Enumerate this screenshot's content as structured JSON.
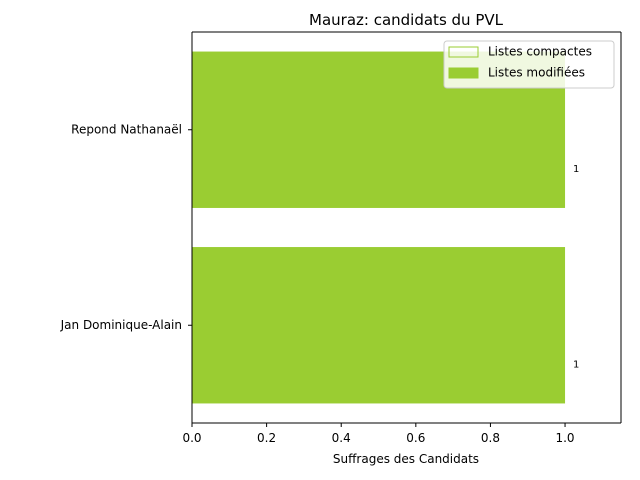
{
  "chart_data": {
    "type": "bar",
    "orientation": "horizontal",
    "title": "Mauraz: candidats du PVL",
    "xlabel": "Suffrages des Candidats",
    "ylabel": "",
    "categories": [
      "Repond Nathanaël",
      "Jan Dominique-Alain"
    ],
    "series": [
      {
        "name": "Listes compactes",
        "values": [
          0,
          0
        ],
        "color": "#9acd32",
        "style": "outline"
      },
      {
        "name": "Listes modifiées",
        "values": [
          1,
          1
        ],
        "color": "#9acd32",
        "style": "filled"
      }
    ],
    "data_labels": [
      "1",
      "1"
    ],
    "xlim": [
      0,
      1.15
    ],
    "xticks": [
      0.0,
      0.2,
      0.4,
      0.6,
      0.8,
      1.0
    ],
    "xtick_labels": [
      "0.0",
      "0.2",
      "0.4",
      "0.6",
      "0.8",
      "1.0"
    ],
    "grid": false,
    "legend_position": "top-right"
  }
}
